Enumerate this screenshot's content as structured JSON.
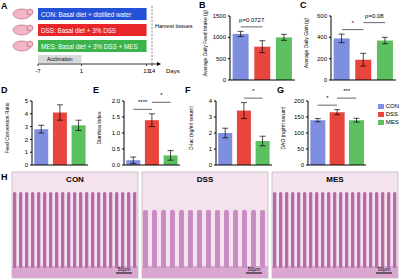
{
  "schematic": {
    "panel": "A",
    "groups": [
      {
        "label": "CON: Basal diet + distilled water",
        "color": "#2452d6"
      },
      {
        "label": "DSS: Basal diet + 3% DSS",
        "color": "#e8262a"
      },
      {
        "label": "MES: Basal diet + 3% DSS + MES",
        "color": "#3cb44b"
      }
    ],
    "acclimation": "Acclimation",
    "harvest": "Harvest tissues",
    "axis_label": "Days",
    "days": [
      -7,
      1,
      13,
      14
    ]
  },
  "chart_data": [
    {
      "panel": "B",
      "type": "bar",
      "y_label": "Average Daily Feed Intake (g)",
      "categories": [
        "CON",
        "DSS",
        "MES"
      ],
      "values": [
        1080,
        780,
        1000
      ],
      "errors": [
        60,
        140,
        70
      ],
      "colors": [
        "#7f8fe0",
        "#e8453c",
        "#5cbf60"
      ],
      "ylim": [
        0,
        1500
      ],
      "yticks": [
        0,
        500,
        1000,
        1500
      ],
      "annotations": [
        {
          "text": "p=0.0727",
          "between": [
            "CON",
            "DSS"
          ]
        }
      ]
    },
    {
      "panel": "C",
      "type": "bar",
      "y_label": "Average Daily Gain (g)",
      "categories": [
        "CON",
        "DSS",
        "MES"
      ],
      "values": [
        390,
        190,
        370
      ],
      "errors": [
        40,
        60,
        30
      ],
      "colors": [
        "#7f8fe0",
        "#e8453c",
        "#5cbf60"
      ],
      "ylim": [
        0,
        600
      ],
      "yticks": [
        0,
        200,
        400,
        600
      ],
      "annotations": [
        {
          "text": "*",
          "between": [
            "CON",
            "DSS"
          ]
        },
        {
          "text": "p=0.08",
          "between": [
            "DSS",
            "MES"
          ]
        }
      ]
    },
    {
      "panel": "D",
      "type": "bar",
      "y_label": "Feed Conversion Ratio",
      "categories": [
        "CON",
        "DSS",
        "MES"
      ],
      "values": [
        2.8,
        4.1,
        3.1
      ],
      "errors": [
        0.3,
        0.6,
        0.4
      ],
      "colors": [
        "#7f8fe0",
        "#e8453c",
        "#5cbf60"
      ],
      "ylim": [
        0,
        5
      ],
      "yticks": [
        0,
        1,
        2,
        3,
        4,
        5
      ],
      "annotations": []
    },
    {
      "panel": "E",
      "type": "bar",
      "y_label": "Diarrhea Index",
      "categories": [
        "CON",
        "DSS",
        "MES"
      ],
      "values": [
        0.15,
        1.4,
        0.3
      ],
      "errors": [
        0.1,
        0.2,
        0.15
      ],
      "colors": [
        "#7f8fe0",
        "#e8453c",
        "#5cbf60"
      ],
      "ylim": [
        0,
        2
      ],
      "yticks": [
        {
          "value": 0,
          "label": "0.0"
        },
        {
          "value": 0.5,
          "label": "0.5"
        },
        {
          "value": 1,
          "label": "1.0"
        },
        {
          "value": 1.5,
          "label": "1.5"
        },
        {
          "value": 2,
          "label": "2.0"
        }
      ],
      "annotations": [
        {
          "text": "****",
          "between": [
            "CON",
            "DSS"
          ]
        },
        {
          "text": "*",
          "between": [
            "DSS",
            "MES"
          ]
        }
      ]
    },
    {
      "panel": "F",
      "type": "bar",
      "y_label": "D-lac (ng/ml serum)",
      "categories": [
        "CON",
        "DSS",
        "MES"
      ],
      "values": [
        2.0,
        3.4,
        1.5
      ],
      "errors": [
        0.3,
        0.5,
        0.3
      ],
      "colors": [
        "#7f8fe0",
        "#e8453c",
        "#5cbf60"
      ],
      "ylim": [
        0,
        4
      ],
      "yticks": [
        0,
        1,
        2,
        3,
        4
      ],
      "annotations": [
        {
          "text": "*",
          "between": [
            "DSS",
            "MES"
          ]
        }
      ]
    },
    {
      "panel": "G",
      "type": "bar",
      "y_label": "DAO (ng/ml serum)",
      "categories": [
        "CON",
        "DSS",
        "MES"
      ],
      "values": [
        140,
        165,
        140
      ],
      "errors": [
        5,
        8,
        6
      ],
      "colors": [
        "#7f8fe0",
        "#e8453c",
        "#5cbf60"
      ],
      "ylim": [
        0,
        200
      ],
      "yticks": [
        0,
        50,
        100,
        150,
        200
      ],
      "legend": "upper right",
      "annotations": [
        {
          "text": "*",
          "between": [
            "CON",
            "DSS"
          ]
        },
        {
          "text": "***",
          "between": [
            "DSS",
            "MES"
          ]
        }
      ]
    }
  ],
  "histology": {
    "panel": "H",
    "images": [
      "CON",
      "DSS",
      "MES"
    ],
    "scale_bar": "50μm"
  }
}
